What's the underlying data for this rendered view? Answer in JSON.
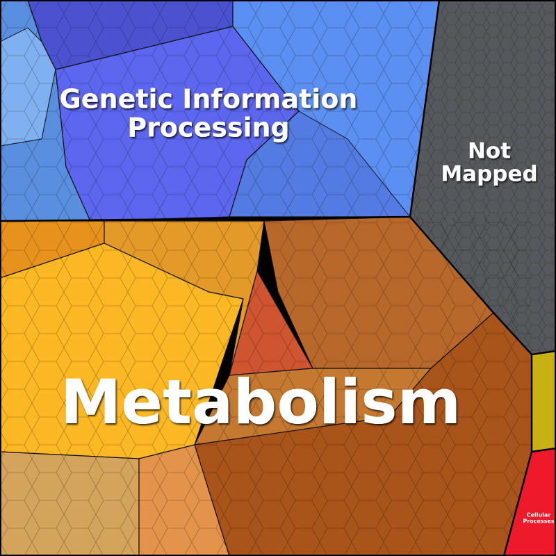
{
  "regions": [
    {
      "label_lines": [
        "Genetic Information",
        "Processing"
      ]
    },
    {
      "label_lines": [
        "Not",
        "Mapped"
      ]
    },
    {
      "label_lines": [
        "Metabolism"
      ]
    },
    {
      "label_lines": [
        "Cellular",
        "Processes"
      ]
    }
  ]
}
